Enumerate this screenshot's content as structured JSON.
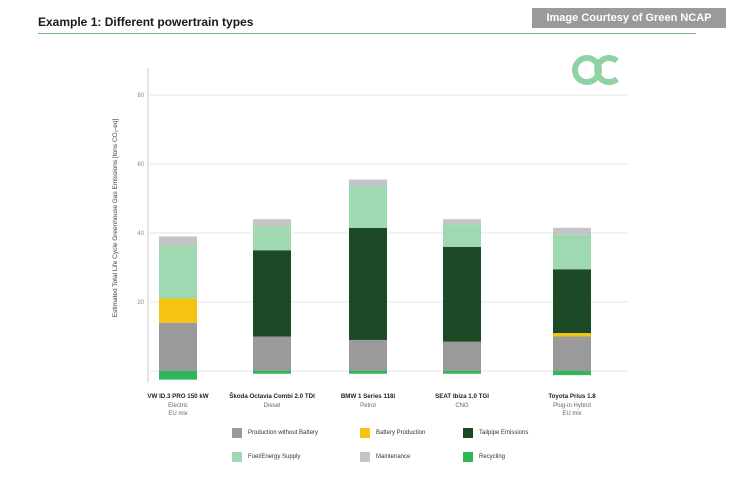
{
  "header": {
    "title": "Example 1: Different powertrain types",
    "courtesy": "Image Courtesy of Green NCAP"
  },
  "logo_icon": "green-ncap-logo-icon",
  "chart_data": {
    "type": "bar",
    "stacked": true,
    "title": "",
    "xlabel": "",
    "ylabel": "Estimated Total Life Cycle Greenhouse Gas Emissions [tons CO₂-eq]",
    "ylim": [
      -3,
      86
    ],
    "yticks": [
      20,
      40,
      60,
      80
    ],
    "grid": true,
    "legend_position": "bottom",
    "categories": [
      {
        "name": "VW ID.3 PRO 150 kW",
        "sub1": "Electric",
        "sub2": "EU mix"
      },
      {
        "name": "Škoda Octavia Combi 2.0 TDI",
        "sub1": "Diesel",
        "sub2": ""
      },
      {
        "name": "BMW 1 Series 118i",
        "sub1": "Petrol",
        "sub2": ""
      },
      {
        "name": "SEAT Ibiza 1.0 TGI",
        "sub1": "CNG",
        "sub2": ""
      },
      {
        "name": "Toyota Prius 1.8",
        "sub1": "Plug-in Hybrid",
        "sub2": "EU mix"
      }
    ],
    "series": [
      {
        "name": "Production without Battery",
        "color": "#9a9a9a",
        "values": [
          14,
          10,
          9,
          8.5,
          10
        ]
      },
      {
        "name": "Battery Production",
        "color": "#f7c313",
        "values": [
          7,
          0,
          0,
          0,
          1
        ]
      },
      {
        "name": "Tailpipe Emissions",
        "color": "#1d4a26",
        "values": [
          0,
          25,
          32.5,
          27.5,
          18.5
        ]
      },
      {
        "name": "Fuel/Energy Supply",
        "color": "#9fd9b1",
        "values": [
          15.5,
          7,
          12,
          6.5,
          10
        ]
      },
      {
        "name": "Maintenance",
        "color": "#c4c4c4",
        "values": [
          2.5,
          2,
          2,
          1.5,
          2
        ]
      },
      {
        "name": "Recycling",
        "color": "#2fb659",
        "values": [
          -2.5,
          -0.8,
          -0.8,
          -0.8,
          -1.2
        ]
      }
    ]
  }
}
